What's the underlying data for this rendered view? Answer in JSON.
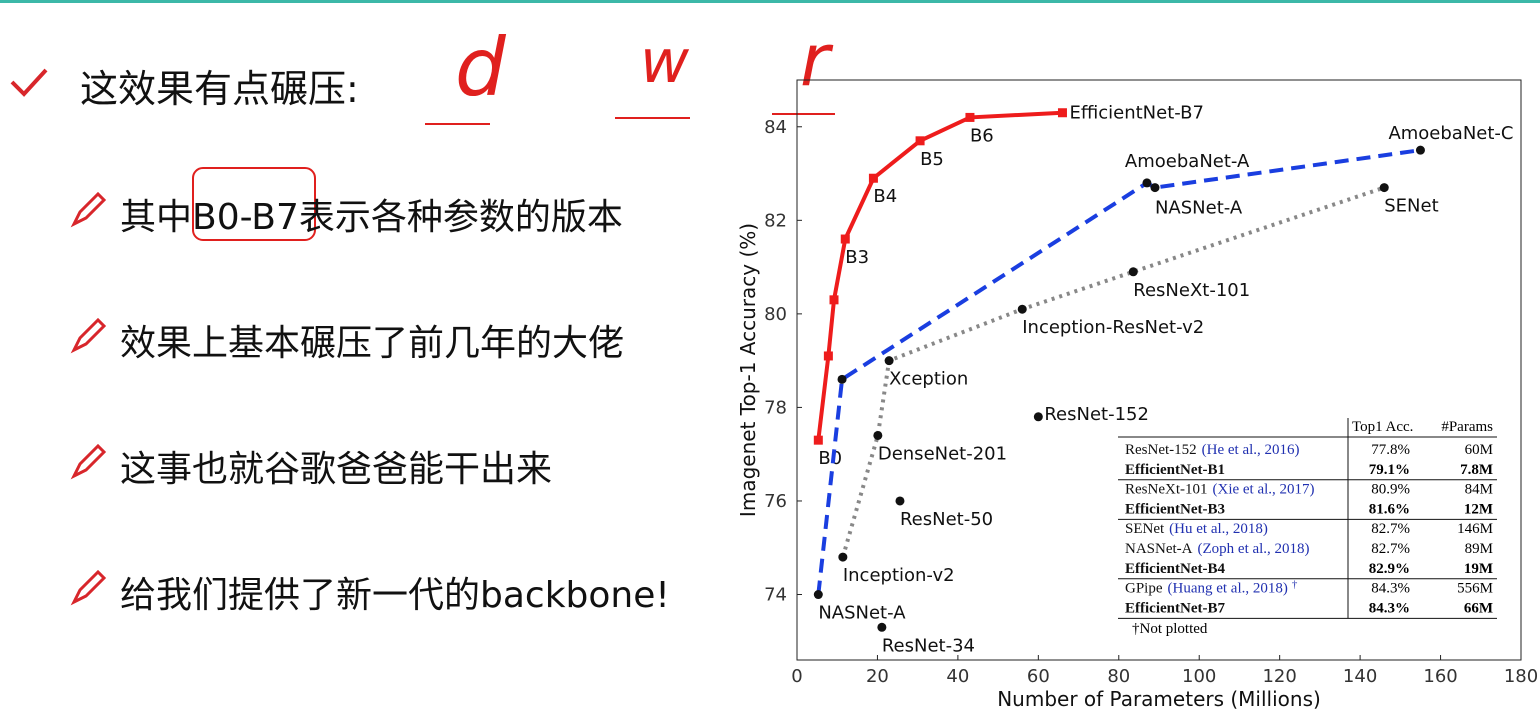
{
  "slide": {
    "heading": "这效果有点碾压:",
    "handwriting": [
      "d",
      "w",
      "r"
    ],
    "bullets": [
      "其中B0-B7表示各种参数的版本",
      "效果上基本碾压了前几年的大佬",
      "这事也就谷歌爸爸能干出来",
      "给我们提供了新一代的backbone!"
    ]
  },
  "chart_data": {
    "type": "scatter",
    "x_label": "Number of Parameters (Millions)",
    "y_label": "Imagenet Top-1 Accuracy (%)",
    "xlim": [
      0,
      180
    ],
    "xticks": [
      0,
      20,
      40,
      60,
      80,
      100,
      120,
      140,
      160,
      180
    ],
    "ylim": [
      72.6,
      85
    ],
    "yticks": [
      74,
      76,
      78,
      80,
      82,
      84
    ],
    "series": [
      {
        "color": "#ee1c1c",
        "style": "solid",
        "marker": "square",
        "x": [
          5.3,
          7.8,
          9.2,
          12,
          19,
          30.6,
          43,
          66
        ],
        "values": [
          77.3,
          79.1,
          80.3,
          81.6,
          82.9,
          83.7,
          84.2,
          84.3
        ],
        "labels": [
          "B0",
          null,
          null,
          "B3",
          "B4",
          "B5",
          "B6",
          "EfficientNet-B7"
        ]
      },
      {
        "color": "#1a3ee0",
        "style": "dashed",
        "marker": "circle",
        "x": [
          5.3,
          11.2,
          87,
          89,
          155
        ],
        "values": [
          74.0,
          78.6,
          82.8,
          82.7,
          83.5
        ],
        "labels": [
          "NASNet-A",
          null,
          "AmoebaNet-A",
          "NASNet-A",
          "AmoebaNet-C"
        ]
      },
      {
        "color": "#888888",
        "style": "dotted",
        "marker": "circle",
        "x": [
          11.4,
          20.1,
          22.9,
          56,
          83.6,
          146
        ],
        "values": [
          74.8,
          77.4,
          79.0,
          80.1,
          80.9,
          82.7
        ],
        "labels": [
          "Inception-v2",
          "DenseNet-201",
          "Xception",
          "Inception-ResNet-v2",
          "ResNeXt-101",
          "SENet"
        ]
      },
      {
        "color": "#111111",
        "style": "none",
        "marker": "circle",
        "x": [
          21.1,
          25.6,
          60
        ],
        "values": [
          73.3,
          76.0,
          77.8
        ],
        "labels": [
          "ResNet-34",
          "ResNet-50",
          "ResNet-152"
        ]
      }
    ],
    "table": {
      "header": [
        "Top1 Acc.",
        "#Params"
      ],
      "rows": [
        {
          "model": "ResNet-152",
          "cite": "(He et al., 2016)",
          "acc": "77.8%",
          "params": "60M"
        },
        {
          "model": "EfficientNet-B1",
          "acc": "79.1%",
          "params": "7.8M",
          "bold": true
        },
        {
          "model": "ResNeXt-101",
          "cite": "(Xie et al., 2017)",
          "acc": "80.9%",
          "params": "84M"
        },
        {
          "model": "EfficientNet-B3",
          "acc": "81.6%",
          "params": "12M",
          "bold": true
        },
        {
          "model": "SENet",
          "cite": "(Hu et al., 2018)",
          "acc": "82.7%",
          "params": "146M"
        },
        {
          "model": "NASNet-A",
          "cite": "(Zoph et al., 2018)",
          "acc": "82.7%",
          "params": "89M"
        },
        {
          "model": "EfficientNet-B4",
          "acc": "82.9%",
          "params": "19M",
          "bold": true
        },
        {
          "model": "GPipe",
          "cite": "(Huang et al., 2018)",
          "mark": "†",
          "acc": "84.3%",
          "params": "556M"
        },
        {
          "model": "EfficientNet-B7",
          "acc": "84.3%",
          "params": "66M",
          "bold": true
        }
      ],
      "note": "†Not plotted"
    }
  }
}
